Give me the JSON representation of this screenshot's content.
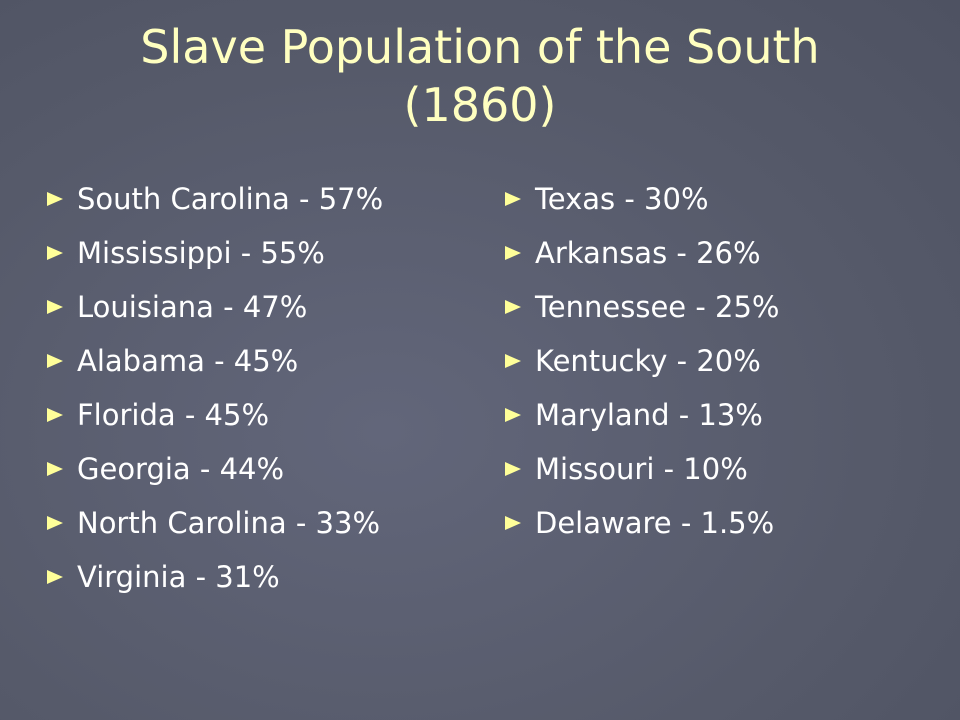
{
  "slide": {
    "title": "Slave Population of the South (1860)",
    "columns": [
      [
        "South Carolina - 57%",
        "Mississippi - 55%",
        "Louisiana - 47%",
        "Alabama - 45%",
        "Florida - 45%",
        "Georgia - 44%",
        "North Carolina - 33%",
        "Virginia - 31%"
      ],
      [
        "Texas - 30%",
        "Arkansas - 26%",
        "Tennessee - 25%",
        "Kentucky - 20%",
        "Maryland - 13%",
        "Missouri - 10%",
        "Delaware - 1.5%"
      ]
    ]
  }
}
